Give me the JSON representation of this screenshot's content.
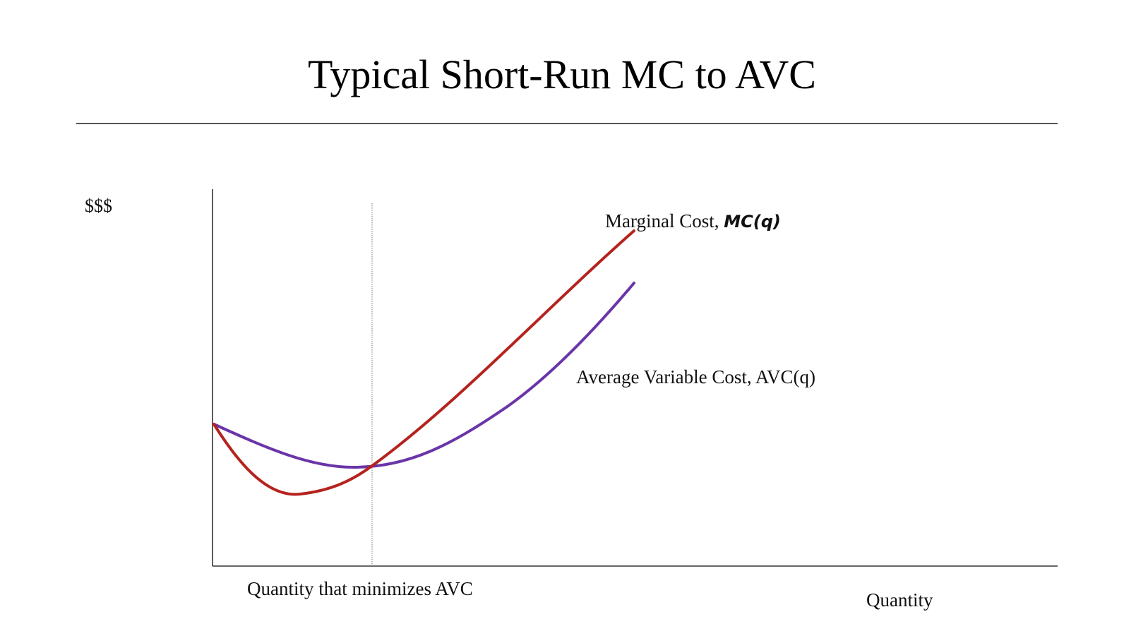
{
  "title": "Typical Short-Run MC to AVC",
  "y_axis_label": "$$$",
  "x_axis_label": "Quantity",
  "min_quantity_label": "Quantity that minimizes AVC",
  "mc_label": {
    "text": "Marginal Cost, ",
    "math": "MC(q)",
    "color": "#b5231e"
  },
  "avc_label": {
    "text": "Average Variable Cost, AVC(q)",
    "color": "#6a35a8"
  },
  "colors": {
    "axis": "#333333",
    "rule": "#555555",
    "mc_curve": "#b5231e",
    "avc_curve": "#6a35a8",
    "min_guide": "#777777"
  }
}
